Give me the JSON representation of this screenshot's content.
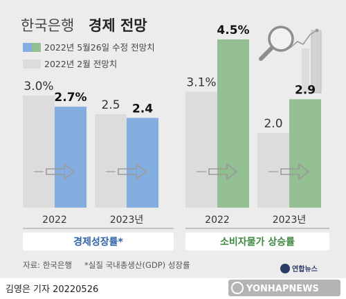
{
  "header": {
    "title_light": "한국은행",
    "title_bold": "경제 전망"
  },
  "legend": {
    "revised": "2022년 5월26일 수정 전망치",
    "previous": "2022년 2월 전망치"
  },
  "colors": {
    "background": "#ececec",
    "previous_bar": "#dcdcdc",
    "gdp_revised_bar": "#85aee0",
    "cpi_revised_bar": "#93bf93",
    "gdp_panel_text": "#2f62a8",
    "cpi_panel_text": "#3f8a3f",
    "arrow": "#9a9a9a"
  },
  "chart_data": [
    {
      "type": "bar",
      "panel_label": "경제성장률*",
      "categories": [
        "2022",
        "2023년"
      ],
      "series": [
        {
          "name": "2022년 2월 전망치",
          "values": [
            3.0,
            2.5
          ],
          "labels": [
            "3.0%",
            "2.5"
          ]
        },
        {
          "name": "2022년 5월26일 수정 전망치",
          "values": [
            2.7,
            2.4
          ],
          "labels": [
            "2.7%",
            "2.4"
          ]
        }
      ]
    },
    {
      "type": "bar",
      "panel_label": "소비자물가 상승률",
      "categories": [
        "2022",
        "2023년"
      ],
      "series": [
        {
          "name": "2022년 2월 전망치",
          "values": [
            3.1,
            2.0
          ],
          "labels": [
            "3.1%",
            "2.0"
          ]
        },
        {
          "name": "2022년 5월26일 수정 전망치",
          "values": [
            4.5,
            2.9
          ],
          "labels": [
            "4.5%",
            "2.9"
          ]
        }
      ]
    }
  ],
  "footer": {
    "source": "자료: 한국은행",
    "note": "*실질 국내총생산(GDP) 성장률",
    "credit": "김영은 기자  20220526",
    "brand_ko": "연합뉴스",
    "brand_en": "YONHAPNEWS"
  }
}
